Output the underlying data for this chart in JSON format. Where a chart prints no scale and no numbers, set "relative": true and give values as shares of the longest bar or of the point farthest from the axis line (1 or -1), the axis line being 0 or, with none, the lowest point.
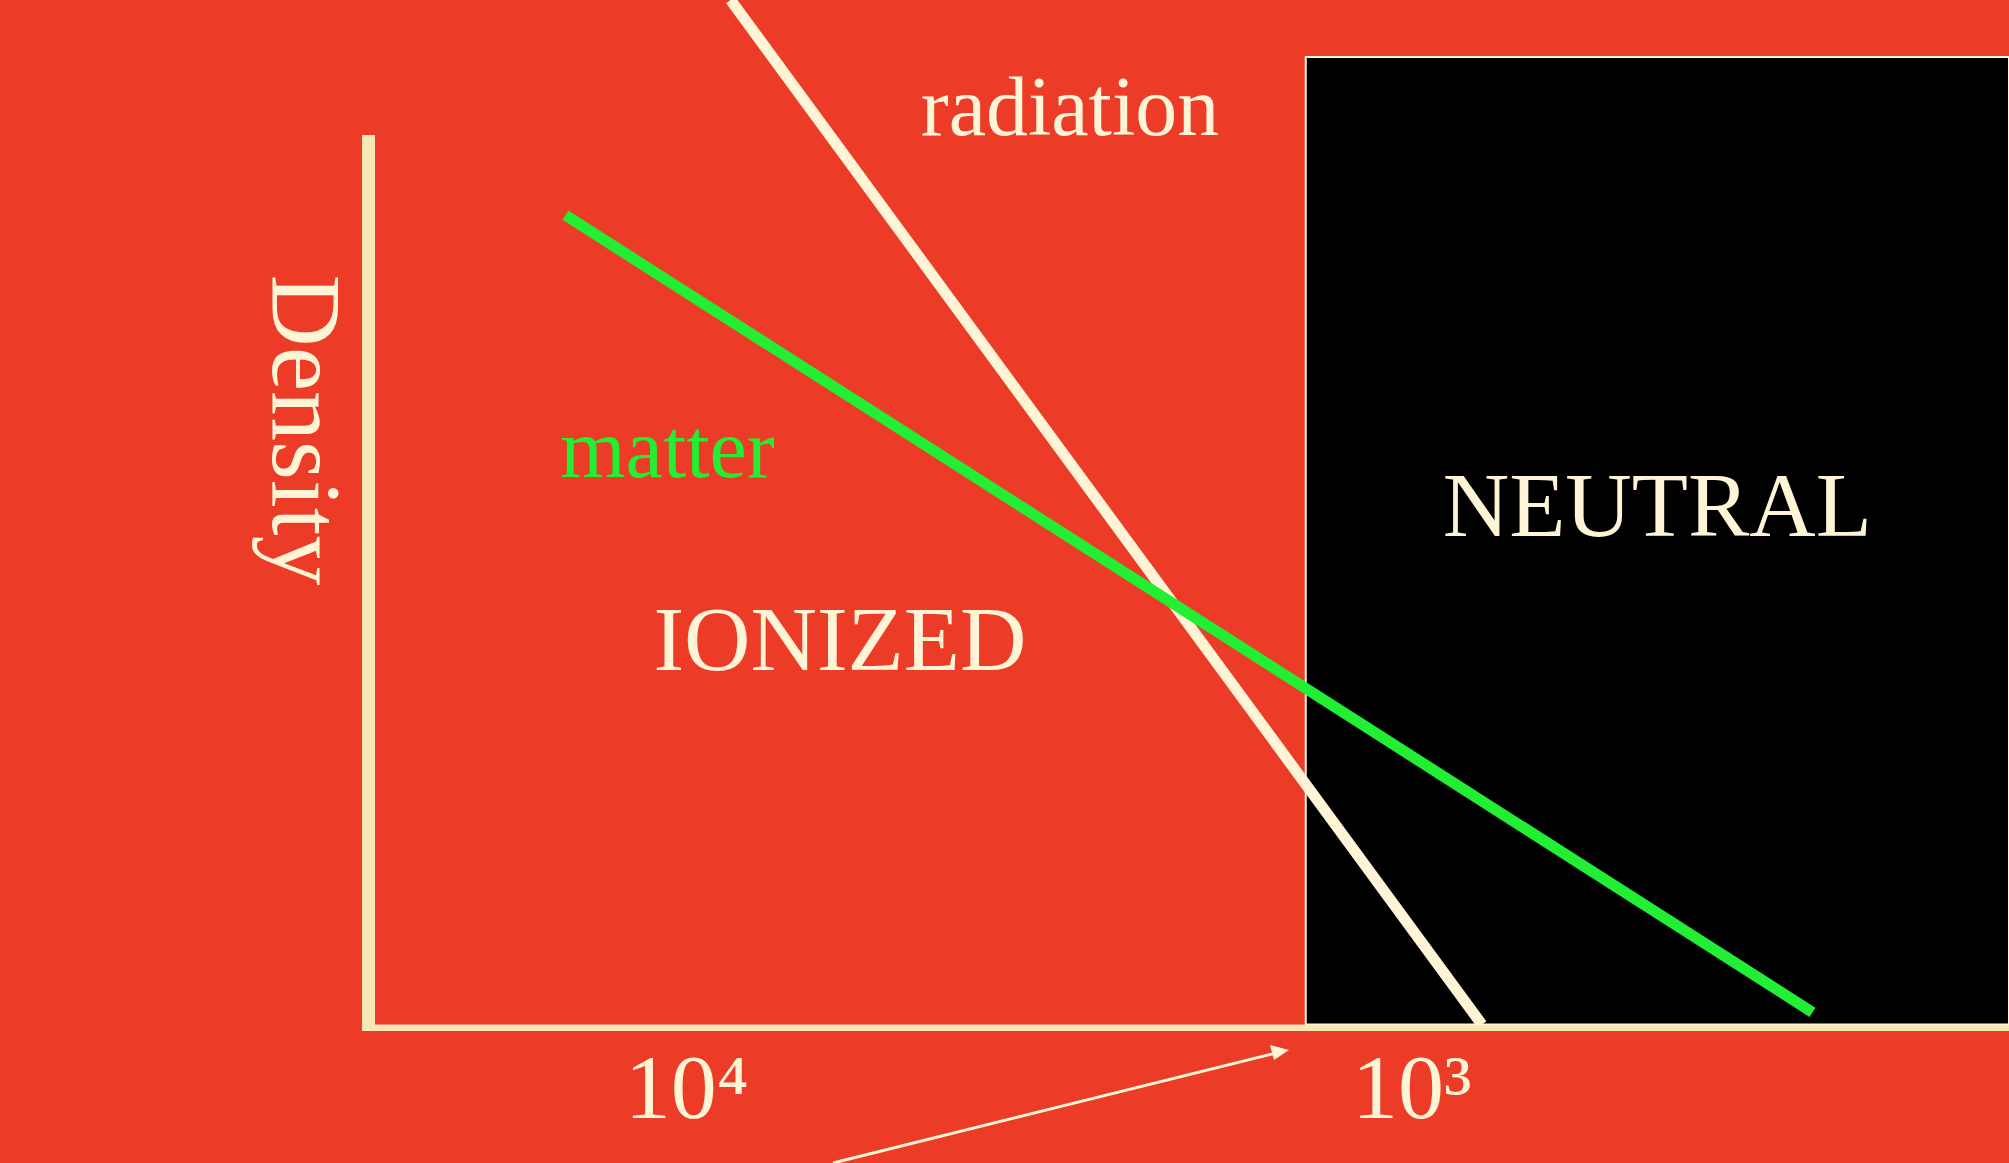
{
  "chart_data": {
    "type": "line",
    "relative": true,
    "ylabel": "Density",
    "log": "x",
    "xlim": [
      27000,
      150
    ],
    "xticks": [
      {
        "value": 10000,
        "label": "10⁴"
      },
      {
        "value": 1000,
        "label": "10³"
      }
    ],
    "grid": false,
    "legend": false,
    "marker": "none",
    "line_style": "solid",
    "series": [
      {
        "name": "matter",
        "color": "#22ee33",
        "x": [
          14700,
          280
        ],
        "values": [
          0.79,
          0.012
        ]
      },
      {
        "name": "radiation",
        "color": "#fff5d6",
        "x": [
          8700,
          800
        ],
        "values": [
          1,
          0
        ]
      }
    ],
    "bands": [
      {
        "axis": "x",
        "from": 27000,
        "to": 1400,
        "label": "IONIZED",
        "color": "#ec3b26"
      },
      {
        "axis": "x",
        "from": 1400,
        "to": 150,
        "label": "NEUTRAL",
        "color": "#000000"
      }
    ]
  }
}
